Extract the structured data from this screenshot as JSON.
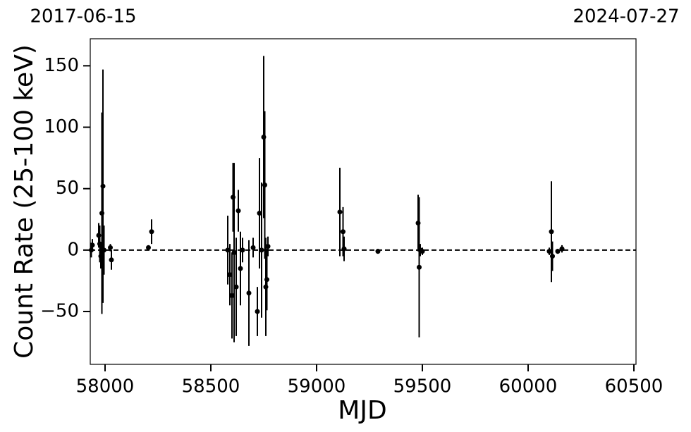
{
  "chart_data": {
    "type": "scatter",
    "date_labels": [
      "2017-06-15",
      "2024-07-27"
    ],
    "xlabel": "MJD",
    "ylabel": "Count Rate (25-100 keV)",
    "x": [
      57935,
      57940,
      57970,
      57975,
      57980,
      57985,
      57990,
      57995,
      58025,
      58030,
      58205,
      58220,
      58580,
      58590,
      58600,
      58605,
      58610,
      58620,
      58630,
      58640,
      58650,
      58680,
      58700,
      58720,
      58730,
      58740,
      58750,
      58755,
      58760,
      58765,
      58770,
      59110,
      59125,
      59130,
      59290,
      59480,
      59485,
      59490,
      59500,
      60100,
      60110,
      60115,
      60140,
      60160
    ],
    "y": [
      0,
      4,
      12,
      5,
      -5,
      30,
      52,
      0,
      2,
      -8,
      2,
      15,
      0,
      -20,
      -37,
      43,
      -2,
      -30,
      32,
      -15,
      0,
      -35,
      2,
      -50,
      30,
      0,
      92,
      53,
      -30,
      -24,
      3,
      31,
      15,
      1,
      -1,
      22,
      -14,
      0,
      -1,
      -1,
      15,
      -5,
      -1,
      1
    ],
    "yerr": [
      6,
      5,
      10,
      15,
      10,
      82,
      95,
      20,
      3,
      8,
      2,
      10,
      28,
      25,
      35,
      28,
      73,
      40,
      17,
      30,
      10,
      43,
      8,
      20,
      45,
      55,
      66,
      60,
      40,
      25,
      8,
      36,
      20,
      10,
      2,
      23,
      57,
      5,
      3,
      3,
      41,
      12,
      2,
      3
    ],
    "color": "#000000",
    "hline": 0,
    "xlim": [
      57930,
      60510
    ],
    "ylim": [
      -93,
      172
    ],
    "xticks": [
      58000,
      58500,
      59000,
      59500,
      60000,
      60500
    ],
    "yticks": [
      {
        "value": -50,
        "label": "−50"
      },
      0,
      50,
      100,
      150
    ]
  }
}
